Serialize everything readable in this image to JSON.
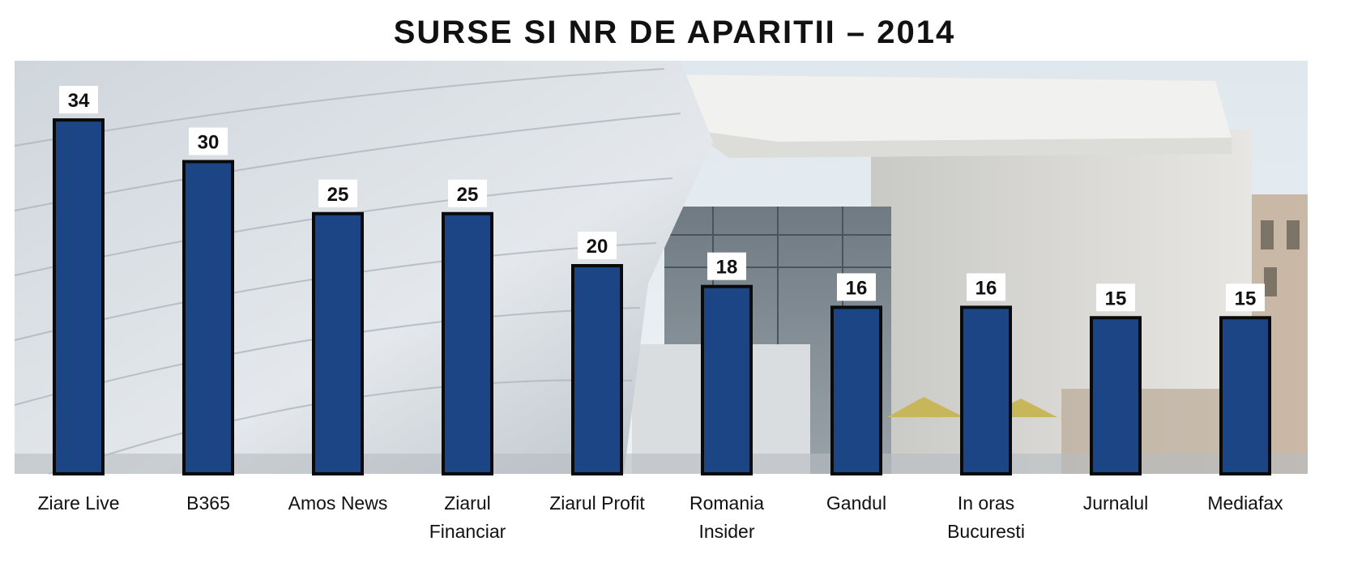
{
  "chart_data": {
    "type": "bar",
    "title": "SURSE  SI  NR  DE  APARITII  – 2014",
    "categories": [
      [
        "Ziare Live"
      ],
      [
        "B365"
      ],
      [
        "Amos News"
      ],
      [
        "Ziarul",
        "Financiar"
      ],
      [
        "Ziarul Profit"
      ],
      [
        "Romania",
        "Insider"
      ],
      [
        "Gandul"
      ],
      [
        "In oras",
        "Bucuresti"
      ],
      [
        "Jurnalul"
      ],
      [
        "Mediafax"
      ]
    ],
    "values": [
      34,
      30,
      25,
      25,
      20,
      18,
      16,
      16,
      15,
      15
    ],
    "data_labels": true,
    "grid": false,
    "legend": "none",
    "bar_color": "#1b4585",
    "background": "photograph of a modern building facade"
  }
}
